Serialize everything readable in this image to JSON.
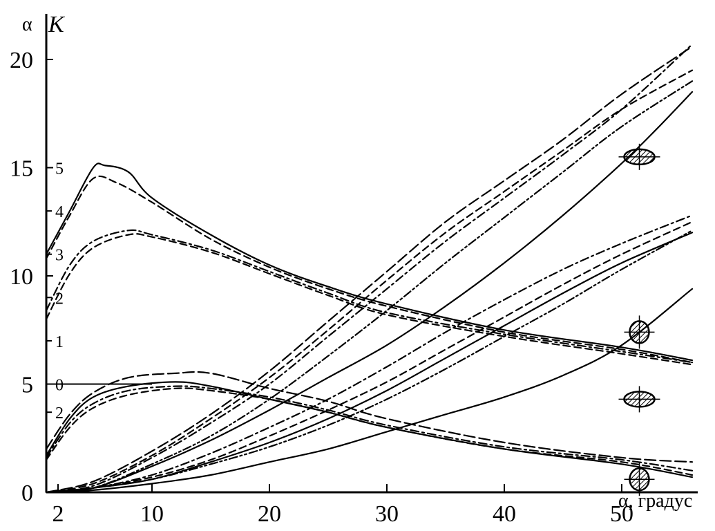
{
  "chart_data": {
    "type": "line",
    "x_axis": {
      "label": "α, градус",
      "ticks": [
        "2",
        "10",
        "20",
        "30",
        "40",
        "50"
      ],
      "tick_values": [
        2,
        10,
        20,
        30,
        40,
        50
      ],
      "range": [
        1,
        58
      ]
    },
    "y_axis_left": {
      "label_alpha": "α",
      "label_K": "K",
      "ticks": [
        "0",
        "5",
        "10",
        "15",
        "20"
      ],
      "tick_values": [
        0,
        5,
        10,
        15,
        20
      ],
      "range": [
        0,
        21.5
      ]
    },
    "y_axis_inner": {
      "ticks": [
        "5",
        "4",
        "3",
        "2",
        "1",
        "0",
        "2"
      ],
      "tick_values": [
        15,
        13,
        11,
        9,
        7,
        5,
        3.7
      ]
    },
    "reference_line": {
      "y": 5,
      "x_from": 1,
      "x_to": 10
    },
    "series": [
      {
        "group": "K_peak",
        "style": "solid",
        "points": [
          [
            1,
            11
          ],
          [
            3,
            13
          ],
          [
            5,
            15
          ],
          [
            6,
            15.1
          ],
          [
            8,
            14.8
          ],
          [
            10,
            13.6
          ],
          [
            15,
            11.9
          ],
          [
            20,
            10.5
          ],
          [
            25,
            9.5
          ],
          [
            30,
            8.7
          ],
          [
            40,
            7.5
          ],
          [
            50,
            6.7
          ],
          [
            56,
            6.1
          ]
        ]
      },
      {
        "group": "K_peak",
        "style": "dashed",
        "points": [
          [
            1,
            10.8
          ],
          [
            3,
            12.8
          ],
          [
            5,
            14.5
          ],
          [
            7,
            14.3
          ],
          [
            10,
            13.4
          ],
          [
            15,
            11.7
          ],
          [
            20,
            10.4
          ],
          [
            25,
            9.4
          ],
          [
            30,
            8.6
          ],
          [
            40,
            7.4
          ],
          [
            50,
            6.6
          ],
          [
            56,
            6.0
          ]
        ]
      },
      {
        "group": "K_mid",
        "style": "dashdot",
        "points": [
          [
            1,
            8.4
          ],
          [
            3,
            10.5
          ],
          [
            5,
            11.6
          ],
          [
            8,
            12.1
          ],
          [
            10,
            11.9
          ],
          [
            15,
            11.2
          ],
          [
            20,
            10.2
          ],
          [
            25,
            9.2
          ],
          [
            30,
            8.3
          ],
          [
            40,
            7.3
          ],
          [
            50,
            6.5
          ],
          [
            56,
            6.0
          ]
        ]
      },
      {
        "group": "K_mid",
        "style": "dashed",
        "points": [
          [
            1,
            8.0
          ],
          [
            3,
            10.1
          ],
          [
            5,
            11.3
          ],
          [
            8,
            11.9
          ],
          [
            10,
            11.8
          ],
          [
            15,
            11.1
          ],
          [
            20,
            10.1
          ],
          [
            25,
            9.1
          ],
          [
            30,
            8.2
          ],
          [
            40,
            7.2
          ],
          [
            50,
            6.4
          ],
          [
            56,
            5.9
          ]
        ]
      },
      {
        "group": "K_low",
        "style": "longdash",
        "points": [
          [
            1,
            2.0
          ],
          [
            3,
            3.6
          ],
          [
            5,
            4.6
          ],
          [
            8,
            5.3
          ],
          [
            12,
            5.5
          ],
          [
            15,
            5.5
          ],
          [
            20,
            4.8
          ],
          [
            25,
            4.2
          ],
          [
            30,
            3.4
          ],
          [
            40,
            2.3
          ],
          [
            50,
            1.6
          ],
          [
            56,
            1.4
          ]
        ]
      },
      {
        "group": "K_low",
        "style": "solid",
        "points": [
          [
            1,
            1.7
          ],
          [
            3,
            3.4
          ],
          [
            5,
            4.4
          ],
          [
            8,
            4.9
          ],
          [
            12,
            5.1
          ],
          [
            15,
            4.9
          ],
          [
            20,
            4.3
          ],
          [
            25,
            3.7
          ],
          [
            30,
            3.0
          ],
          [
            40,
            2.0
          ],
          [
            50,
            1.3
          ],
          [
            56,
            0.7
          ]
        ]
      },
      {
        "group": "K_low",
        "style": "dashdot",
        "points": [
          [
            1,
            1.6
          ],
          [
            3,
            3.2
          ],
          [
            5,
            4.1
          ],
          [
            8,
            4.7
          ],
          [
            12,
            4.9
          ],
          [
            15,
            4.8
          ],
          [
            20,
            4.4
          ],
          [
            25,
            3.8
          ],
          [
            30,
            3.1
          ],
          [
            40,
            2.1
          ],
          [
            50,
            1.5
          ],
          [
            56,
            1.0
          ]
        ]
      },
      {
        "group": "K_low",
        "style": "dashed",
        "points": [
          [
            1,
            1.5
          ],
          [
            3,
            3.0
          ],
          [
            5,
            3.9
          ],
          [
            8,
            4.5
          ],
          [
            12,
            4.8
          ],
          [
            15,
            4.7
          ],
          [
            20,
            4.3
          ],
          [
            25,
            3.7
          ],
          [
            30,
            3.0
          ],
          [
            40,
            2.0
          ],
          [
            50,
            1.4
          ],
          [
            56,
            0.8
          ]
        ]
      },
      {
        "group": "rising_high",
        "style": "dashed",
        "points": [
          [
            1,
            0
          ],
          [
            5,
            0.4
          ],
          [
            10,
            1.7
          ],
          [
            15,
            3.4
          ],
          [
            20,
            5.3
          ],
          [
            25,
            7.5
          ],
          [
            30,
            9.8
          ],
          [
            35,
            12.0
          ],
          [
            40,
            13.9
          ],
          [
            45,
            15.8
          ],
          [
            50,
            17.7
          ],
          [
            56,
            19.5
          ]
        ]
      },
      {
        "group": "rising_high",
        "style": "longdash",
        "points": [
          [
            1,
            0
          ],
          [
            5,
            0.5
          ],
          [
            10,
            1.9
          ],
          [
            15,
            3.6
          ],
          [
            20,
            5.6
          ],
          [
            25,
            7.9
          ],
          [
            30,
            10.2
          ],
          [
            35,
            12.5
          ],
          [
            40,
            14.4
          ],
          [
            45,
            16.3
          ],
          [
            50,
            18.4
          ],
          [
            56,
            20.6
          ]
        ]
      },
      {
        "group": "rising_high",
        "style": "dashdot",
        "points": [
          [
            1,
            0
          ],
          [
            5,
            0.3
          ],
          [
            10,
            1.6
          ],
          [
            15,
            3.2
          ],
          [
            20,
            5.0
          ],
          [
            25,
            7.2
          ],
          [
            30,
            9.4
          ],
          [
            35,
            11.6
          ],
          [
            40,
            13.6
          ],
          [
            45,
            15.6
          ],
          [
            50,
            17.7
          ],
          [
            56,
            20.7
          ]
        ]
      },
      {
        "group": "rising_high",
        "style": "dashdotdot",
        "points": [
          [
            1,
            0
          ],
          [
            5,
            0.2
          ],
          [
            10,
            1.3
          ],
          [
            15,
            2.6
          ],
          [
            20,
            4.3
          ],
          [
            25,
            6.3
          ],
          [
            30,
            8.4
          ],
          [
            35,
            10.6
          ],
          [
            40,
            12.7
          ],
          [
            45,
            14.8
          ],
          [
            50,
            16.9
          ],
          [
            56,
            19.0
          ]
        ]
      },
      {
        "group": "rising_high",
        "style": "solid",
        "points": [
          [
            1,
            0
          ],
          [
            5,
            0.2
          ],
          [
            10,
            1.2
          ],
          [
            15,
            2.4
          ],
          [
            20,
            3.8
          ],
          [
            25,
            5.3
          ],
          [
            30,
            6.8
          ],
          [
            35,
            8.6
          ],
          [
            40,
            10.6
          ],
          [
            45,
            12.8
          ],
          [
            50,
            15.2
          ],
          [
            53,
            16.8
          ],
          [
            56,
            18.5
          ]
        ]
      },
      {
        "group": "rising_low",
        "style": "dashdot",
        "points": [
          [
            1,
            0
          ],
          [
            5,
            0.2
          ],
          [
            10,
            0.8
          ],
          [
            15,
            1.8
          ],
          [
            20,
            3.0
          ],
          [
            25,
            4.3
          ],
          [
            30,
            5.8
          ],
          [
            35,
            7.4
          ],
          [
            40,
            8.9
          ],
          [
            45,
            10.3
          ],
          [
            50,
            11.5
          ],
          [
            56,
            12.8
          ]
        ]
      },
      {
        "group": "rising_low",
        "style": "dashed",
        "points": [
          [
            1,
            0
          ],
          [
            5,
            0.2
          ],
          [
            10,
            0.7
          ],
          [
            15,
            1.5
          ],
          [
            20,
            2.6
          ],
          [
            25,
            3.8
          ],
          [
            30,
            5.1
          ],
          [
            35,
            6.6
          ],
          [
            40,
            8.1
          ],
          [
            45,
            9.6
          ],
          [
            50,
            11.0
          ],
          [
            56,
            12.5
          ]
        ]
      },
      {
        "group": "rising_low",
        "style": "solid",
        "points": [
          [
            1,
            0
          ],
          [
            5,
            0.2
          ],
          [
            10,
            0.6
          ],
          [
            15,
            1.4
          ],
          [
            20,
            2.3
          ],
          [
            25,
            3.4
          ],
          [
            30,
            4.7
          ],
          [
            35,
            6.2
          ],
          [
            40,
            7.7
          ],
          [
            45,
            9.2
          ],
          [
            50,
            10.6
          ],
          [
            56,
            12.0
          ]
        ]
      },
      {
        "group": "rising_low",
        "style": "dashdotdot",
        "points": [
          [
            1,
            0
          ],
          [
            5,
            0.2
          ],
          [
            10,
            0.6
          ],
          [
            15,
            1.3
          ],
          [
            20,
            2.1
          ],
          [
            25,
            3.1
          ],
          [
            30,
            4.3
          ],
          [
            35,
            5.7
          ],
          [
            40,
            7.2
          ],
          [
            45,
            8.7
          ],
          [
            50,
            10.3
          ],
          [
            56,
            12.1
          ]
        ]
      },
      {
        "group": "rising_low",
        "style": "solid",
        "points": [
          [
            1,
            0
          ],
          [
            5,
            0.1
          ],
          [
            10,
            0.4
          ],
          [
            15,
            0.8
          ],
          [
            20,
            1.4
          ],
          [
            25,
            2.0
          ],
          [
            30,
            2.8
          ],
          [
            35,
            3.6
          ],
          [
            40,
            4.4
          ],
          [
            45,
            5.4
          ],
          [
            50,
            6.8
          ],
          [
            56,
            9.4
          ]
        ]
      }
    ],
    "markers": [
      {
        "name": "ellipse-horizontal-1",
        "x": 51.5,
        "y": 15.5,
        "shape": "wide"
      },
      {
        "name": "circle-1",
        "x": 51.5,
        "y": 7.4,
        "shape": "round"
      },
      {
        "name": "ellipse-horizontal-2",
        "x": 51.5,
        "y": 4.3,
        "shape": "wide"
      },
      {
        "name": "circle-2",
        "x": 51.5,
        "y": 0.6,
        "shape": "round"
      }
    ]
  }
}
